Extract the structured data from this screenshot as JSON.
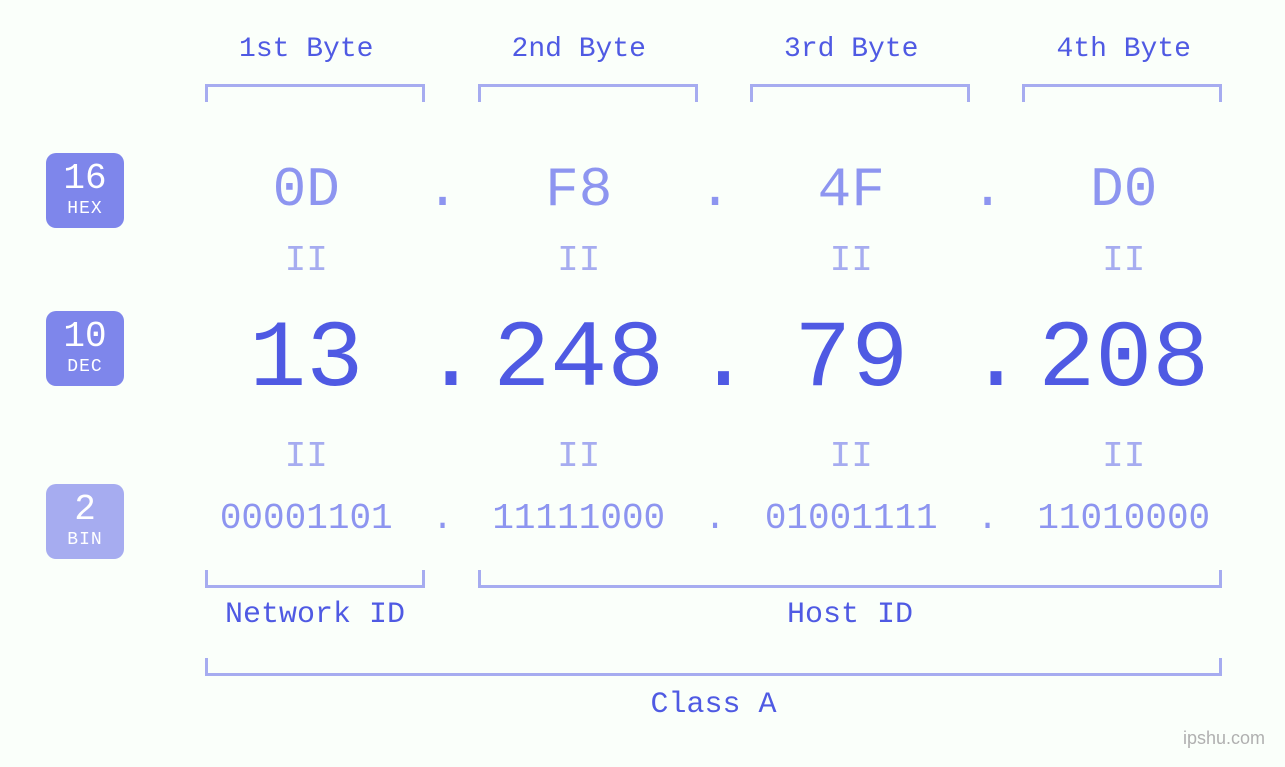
{
  "colors": {
    "background": "#fafffa",
    "primary": "#4f5ae3",
    "secondary": "#8d95f0",
    "badge_solid": "#7e86eb",
    "badge_light": "#a6acf0",
    "bracket": "#a6acf0",
    "watermark": "#b0b0b0"
  },
  "typography": {
    "font_family": "Courier New, monospace",
    "header_fontsize": 28,
    "hex_fontsize": 56,
    "dec_fontsize": 95,
    "bin_fontsize": 36,
    "eq_fontsize": 36,
    "badge_num_fontsize": 36,
    "badge_lbl_fontsize": 18,
    "bottom_label_fontsize": 30
  },
  "bytes": {
    "headers": [
      "1st Byte",
      "2nd Byte",
      "3rd Byte",
      "4th Byte"
    ],
    "hex": [
      "0D",
      "F8",
      "4F",
      "D0"
    ],
    "dec": [
      "13",
      "248",
      "79",
      "208"
    ],
    "bin": [
      "00001101",
      "11111000",
      "01001111",
      "11010000"
    ],
    "separator": ".",
    "equal_symbol": "II"
  },
  "badges": {
    "hex": {
      "base": "16",
      "label": "HEX",
      "variant": "solid"
    },
    "dec": {
      "base": "10",
      "label": "DEC",
      "variant": "solid"
    },
    "bin": {
      "base": "2",
      "label": "BIN",
      "variant": "light"
    }
  },
  "sections": {
    "network_id": "Network ID",
    "host_id": "Host ID",
    "class": "Class A"
  },
  "watermark": "ipshu.com"
}
